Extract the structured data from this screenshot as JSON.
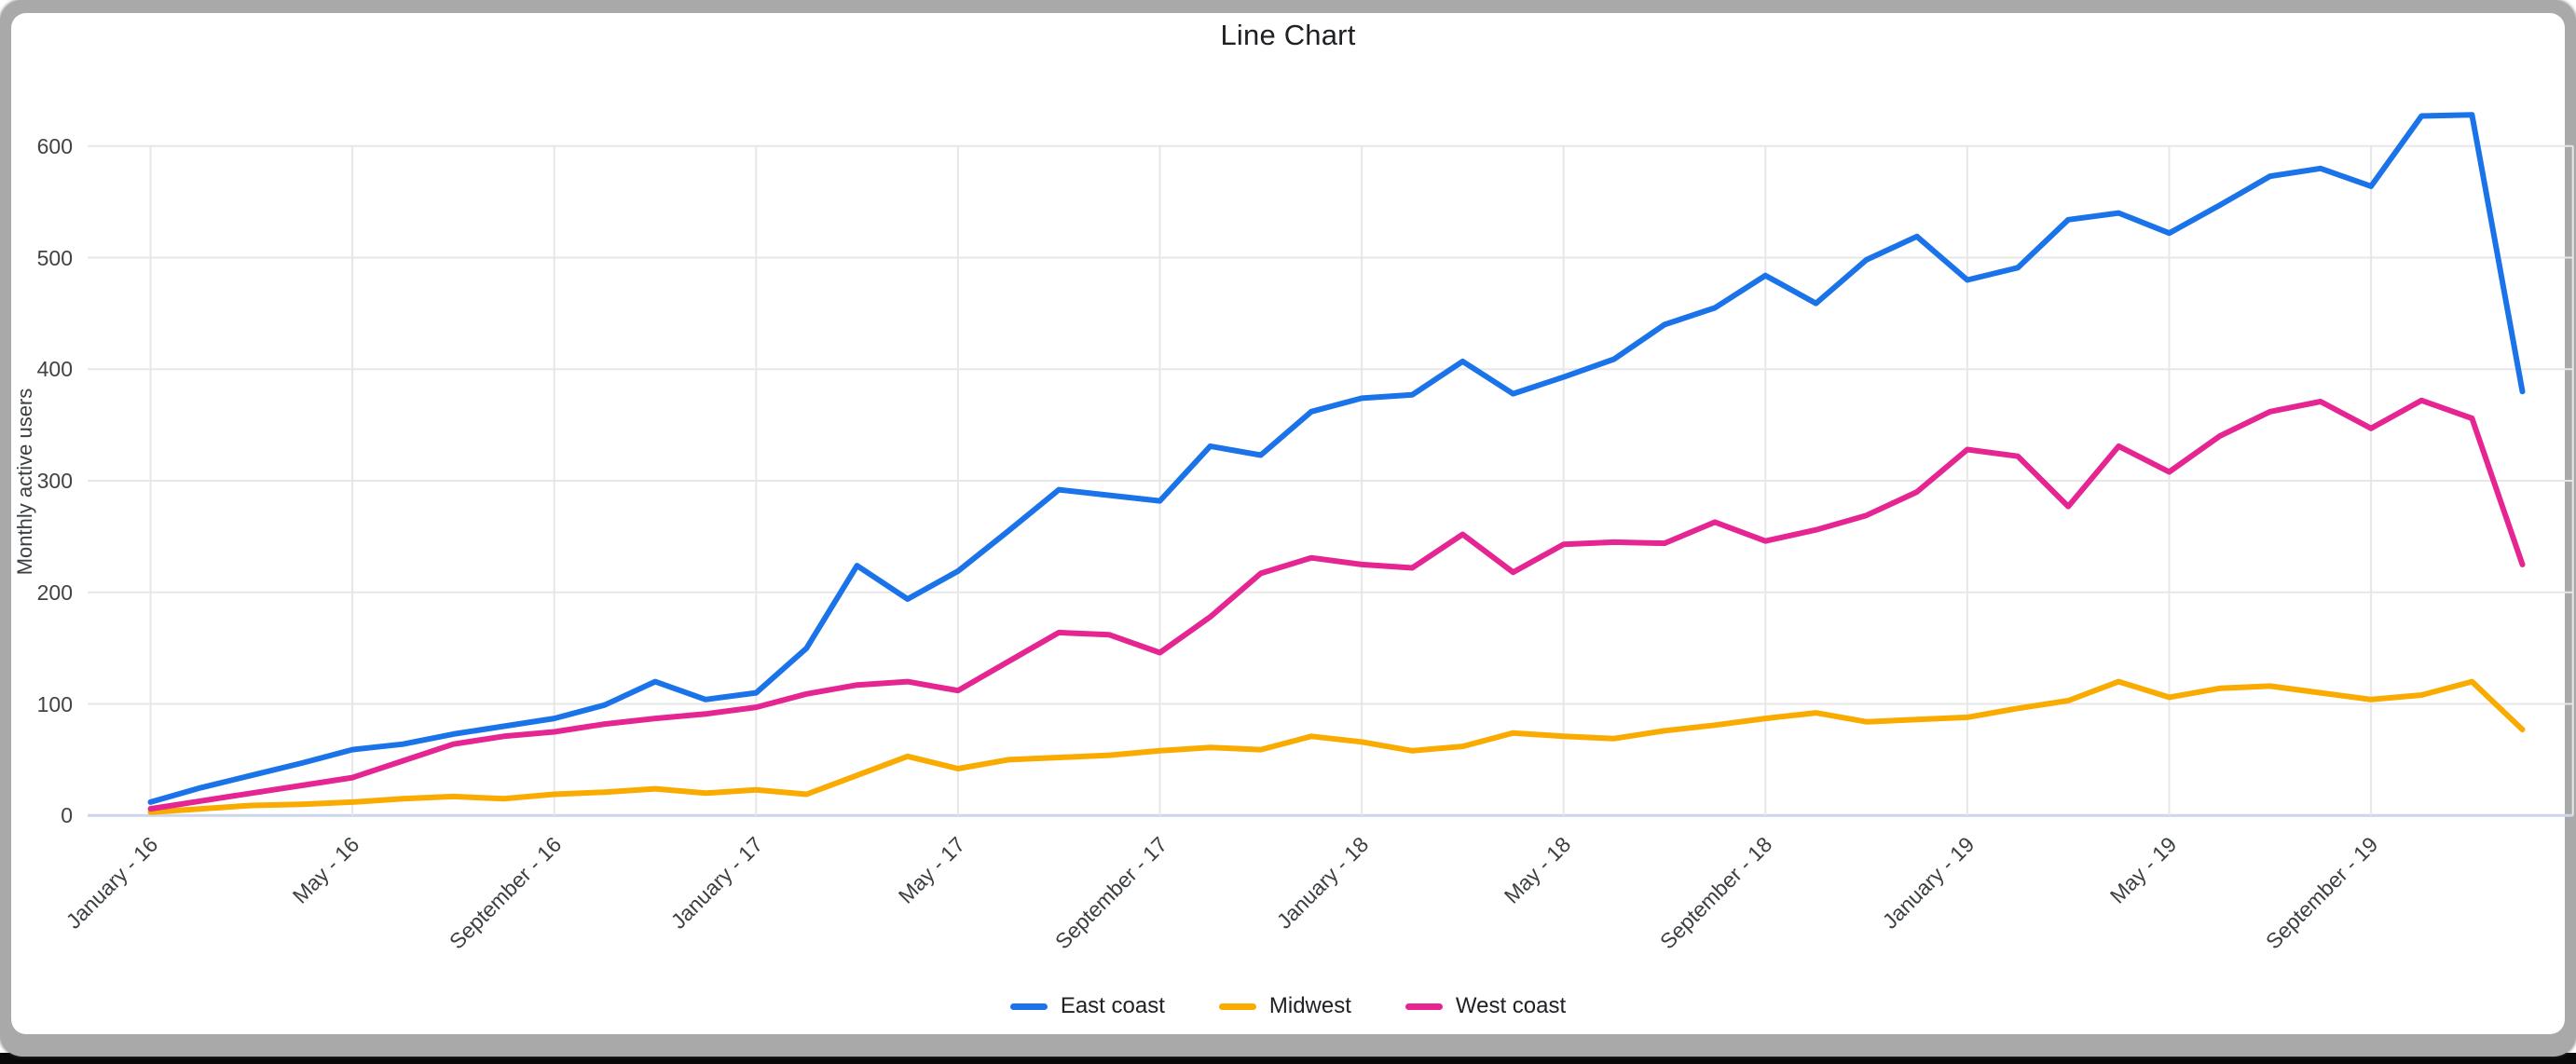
{
  "window": {
    "frame_color": "#a9a9a9",
    "card_color": "#ffffff",
    "bottom_bar_color": "#090909"
  },
  "chart_data": {
    "type": "line",
    "title": "Line Chart",
    "xlabel": "",
    "ylabel": "Monthly active users",
    "ylim": [
      0,
      650
    ],
    "yticks": [
      0,
      100,
      200,
      300,
      400,
      500,
      600
    ],
    "grid": true,
    "legend_position": "bottom",
    "n_points": 48,
    "x_tick_labels": [
      {
        "index": 0,
        "label": "January - 16"
      },
      {
        "index": 4,
        "label": "May - 16"
      },
      {
        "index": 8,
        "label": "September - 16"
      },
      {
        "index": 12,
        "label": "January - 17"
      },
      {
        "index": 16,
        "label": "May - 17"
      },
      {
        "index": 20,
        "label": "September - 17"
      },
      {
        "index": 24,
        "label": "January - 18"
      },
      {
        "index": 28,
        "label": "May - 18"
      },
      {
        "index": 32,
        "label": "September - 18"
      },
      {
        "index": 36,
        "label": "January - 19"
      },
      {
        "index": 40,
        "label": "May - 19"
      },
      {
        "index": 44,
        "label": "September - 19"
      }
    ],
    "series": [
      {
        "name": "East coast",
        "color": "#1a73e8",
        "values": [
          12,
          25,
          36,
          47,
          59,
          64,
          73,
          80,
          87,
          99,
          120,
          104,
          110,
          150,
          224,
          194,
          219,
          255,
          292,
          287,
          282,
          331,
          323,
          362,
          374,
          377,
          407,
          378,
          393,
          409,
          440,
          455,
          484,
          459,
          498,
          519,
          480,
          491,
          534,
          540,
          522,
          547,
          573,
          580,
          564,
          627,
          628,
          380
        ]
      },
      {
        "name": "Midwest",
        "color": "#f9ab00",
        "values": [
          3,
          6,
          9,
          10,
          12,
          15,
          17,
          15,
          19,
          21,
          24,
          20,
          23,
          19,
          36,
          53,
          42,
          50,
          52,
          54,
          58,
          61,
          59,
          71,
          66,
          58,
          62,
          74,
          71,
          69,
          76,
          81,
          87,
          92,
          84,
          86,
          88,
          96,
          103,
          120,
          106,
          114,
          116,
          110,
          104,
          108,
          120,
          77
        ]
      },
      {
        "name": "West coast",
        "color": "#e52592",
        "values": [
          6,
          13,
          20,
          27,
          34,
          49,
          64,
          71,
          75,
          82,
          87,
          91,
          97,
          109,
          117,
          120,
          112,
          138,
          164,
          162,
          146,
          178,
          217,
          231,
          225,
          222,
          252,
          218,
          243,
          245,
          244,
          263,
          246,
          256,
          269,
          290,
          328,
          322,
          277,
          331,
          308,
          340,
          362,
          371,
          347,
          372,
          356,
          225
        ]
      }
    ],
    "style": {
      "grid_color": "#e7e7e7",
      "zero_axis_color": "#ccd6ec",
      "line_width": 6
    }
  }
}
